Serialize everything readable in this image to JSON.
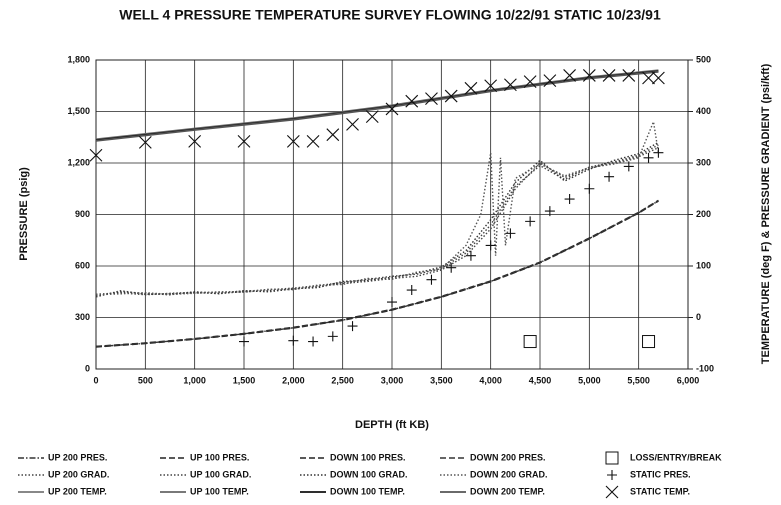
{
  "chart_data": {
    "type": "line",
    "title": "WELL 4 PRESSURE TEMPERATURE SURVEY FLOWING 10/22/91  STATIC 10/23/91",
    "x_label": "DEPTH (ft KB)",
    "y_label": "PRESSURE (psig)",
    "y2_label": "TEMPERATURE (deg F) & PRESSURE GRADIENT (psi/kft)",
    "xlim": [
      0,
      6000
    ],
    "xticks": [
      0,
      500,
      {
        "value": 1000,
        "label": "1,000"
      },
      {
        "value": 1500,
        "label": "1,500"
      },
      {
        "value": 2000,
        "label": "2,000"
      },
      {
        "value": 2500,
        "label": "2,500"
      },
      {
        "value": 3000,
        "label": "3,000"
      },
      {
        "value": 3500,
        "label": "3,500"
      },
      {
        "value": 4000,
        "label": "4,000"
      },
      {
        "value": 4500,
        "label": "4,500"
      },
      {
        "value": 5000,
        "label": "5,000"
      },
      {
        "value": 5500,
        "label": "5,500"
      },
      {
        "value": 6000,
        "label": "6,000"
      }
    ],
    "ylim": [
      0,
      1800
    ],
    "yticks": [
      0,
      300,
      600,
      900,
      {
        "value": 1200,
        "label": "1,200"
      },
      {
        "value": 1500,
        "label": "1,500"
      },
      {
        "value": 1800,
        "label": "1,800"
      }
    ],
    "y2lim": [
      -100,
      500
    ],
    "y2ticks": [
      -100,
      0,
      100,
      200,
      300,
      400,
      500
    ],
    "grid": true,
    "series": [
      {
        "name": "UP 200 PRES.",
        "color": "#333333",
        "style": "dashdot",
        "x": [
          0,
          500,
          1000,
          1500,
          2000,
          2500,
          3000,
          3500,
          4000,
          4500,
          5000,
          5500,
          5700
        ],
        "values": [
          130,
          150,
          175,
          205,
          240,
          285,
          345,
          420,
          510,
          620,
          760,
          910,
          980
        ]
      },
      {
        "name": "UP 200 GRAD.",
        "color": "#444444",
        "style": "dotted",
        "axis": "y2",
        "x": [
          0,
          250,
          500,
          750,
          1000,
          1250,
          1500,
          1750,
          2000,
          2250,
          2500,
          2750,
          3000,
          3250,
          3500,
          3750,
          4000,
          4250,
          4500,
          4750,
          5000,
          5250,
          5500,
          5700
        ],
        "values": [
          40,
          52,
          45,
          46,
          48,
          47,
          50,
          52,
          55,
          60,
          66,
          70,
          76,
          80,
          92,
          120,
          172,
          250,
          300,
          272,
          290,
          300,
          312,
          330
        ]
      },
      {
        "name": "UP 200 TEMP.",
        "color": "#777777",
        "style": "solid",
        "axis": "y2",
        "x": [
          0,
          1000,
          2000,
          3000,
          4000,
          5000,
          5700
        ],
        "values": [
          345,
          366,
          386,
          411,
          441,
          466,
          479
        ]
      },
      {
        "name": "UP 100 PRES.",
        "color": "#222222",
        "style": "dashed",
        "x": [
          0,
          500,
          1000,
          1500,
          2000,
          2500,
          3000,
          3500,
          4000,
          4500,
          5000,
          5500,
          5700
        ],
        "values": [
          132,
          152,
          177,
          207,
          243,
          288,
          348,
          423,
          513,
          623,
          763,
          913,
          983
        ]
      },
      {
        "name": "UP 100 GRAD.",
        "color": "#444444",
        "style": "dotted",
        "axis": "y2",
        "x": [
          0,
          250,
          500,
          750,
          1000,
          1250,
          1500,
          1750,
          2000,
          2250,
          2500,
          2750,
          3000,
          3250,
          3500,
          3750,
          4000,
          4250,
          4500,
          4750,
          5000,
          5250,
          5500,
          5700
        ],
        "values": [
          45,
          48,
          44,
          47,
          49,
          49,
          51,
          54,
          57,
          62,
          68,
          74,
          80,
          84,
          95,
          125,
          180,
          255,
          295,
          268,
          292,
          302,
          315,
          335
        ]
      },
      {
        "name": "UP 100 TEMP.",
        "color": "#666666",
        "style": "solid",
        "axis": "y2",
        "x": [
          0,
          1000,
          2000,
          3000,
          4000,
          5000,
          5700
        ],
        "values": [
          346,
          367,
          387,
          412,
          442,
          467,
          480
        ]
      },
      {
        "name": "DOWN 100 PRES.",
        "color": "#222222",
        "style": "dashed",
        "x": [
          0,
          500,
          1000,
          1500,
          2000,
          2500,
          3000,
          3500,
          4000,
          4500,
          5000,
          5500,
          5700
        ],
        "values": [
          128,
          148,
          173,
          203,
          238,
          283,
          343,
          418,
          508,
          618,
          758,
          908,
          978
        ]
      },
      {
        "name": "DOWN 100 GRAD.",
        "color": "#333333",
        "style": "dotted",
        "axis": "y2",
        "x": [
          0,
          250,
          500,
          750,
          1000,
          1250,
          1500,
          1750,
          2000,
          2250,
          2500,
          2750,
          3000,
          3250,
          3500,
          3750,
          4000,
          4250,
          4500,
          4750,
          5000,
          5250,
          5500,
          5700
        ],
        "values": [
          42,
          50,
          47,
          44,
          50,
          46,
          52,
          50,
          56,
          58,
          70,
          72,
          78,
          86,
          98,
          130,
          190,
          262,
          305,
          265,
          288,
          305,
          318,
          340
        ]
      },
      {
        "name": "DOWN 100 TEMP.",
        "color": "#111111",
        "style": "solid",
        "axis": "y2",
        "x": [
          0,
          1000,
          2000,
          3000,
          4000,
          5000,
          5700
        ],
        "values": [
          344,
          365,
          385,
          410,
          440,
          465,
          478
        ]
      },
      {
        "name": "DOWN 200 PRES.",
        "color": "#333333",
        "style": "dashed",
        "x": [
          0,
          500,
          1000,
          1500,
          2000,
          2500,
          3000,
          3500,
          4000,
          4500,
          5000,
          5500,
          5700
        ],
        "values": [
          131,
          151,
          176,
          206,
          241,
          286,
          346,
          421,
          511,
          621,
          761,
          911,
          981
        ]
      },
      {
        "name": "DOWN 200 GRAD.",
        "color": "#555555",
        "style": "dotted",
        "axis": "y2",
        "x": [
          0,
          250,
          500,
          750,
          1000,
          1250,
          1500,
          1750,
          2000,
          2250,
          2500,
          2750,
          3000,
          3250,
          3500,
          3750,
          3900,
          4000,
          4050,
          4100,
          4150,
          4250,
          4500,
          4750,
          5000,
          5250,
          5500,
          5650,
          5700
        ],
        "values": [
          44,
          46,
          48,
          45,
          47,
          50,
          49,
          55,
          54,
          63,
          64,
          76,
          74,
          88,
          94,
          140,
          200,
          320,
          120,
          310,
          140,
          270,
          298,
          275,
          291,
          298,
          310,
          380,
          320
        ]
      },
      {
        "name": "DOWN 200 TEMP.",
        "color": "#555555",
        "style": "solid",
        "axis": "y2",
        "x": [
          0,
          1000,
          2000,
          3000,
          4000,
          5000,
          5700
        ],
        "values": [
          343,
          364,
          384,
          409,
          439,
          464,
          477
        ]
      },
      {
        "name": "LOSS/ENTRY/BREAK",
        "color": "#111111",
        "marker": "square",
        "x": [
          4400,
          5600
        ],
        "values": [
          160,
          160
        ]
      },
      {
        "name": "STATIC PRES.",
        "color": "#111111",
        "marker": "plus",
        "x": [
          1500,
          2000,
          2200,
          2400,
          2600,
          3000,
          3200,
          3400,
          3600,
          3800,
          4000,
          4200,
          4400,
          4600,
          4800,
          5000,
          5200,
          5400,
          5600,
          5700
        ],
        "values": [
          160,
          165,
          160,
          190,
          250,
          390,
          460,
          520,
          590,
          660,
          720,
          790,
          860,
          920,
          990,
          1050,
          1120,
          1180,
          1230,
          1260
        ]
      },
      {
        "name": "STATIC TEMP.",
        "color": "#111111",
        "marker": "x",
        "axis": "y2",
        "x": [
          0,
          500,
          1000,
          1500,
          2000,
          2200,
          2400,
          2600,
          2800,
          3000,
          3200,
          3400,
          3600,
          3800,
          4000,
          4200,
          4400,
          4600,
          4800,
          5000,
          5200,
          5400,
          5600,
          5700
        ],
        "values": [
          315,
          340,
          342,
          342,
          342,
          342,
          355,
          375,
          390,
          405,
          420,
          425,
          430,
          445,
          450,
          452,
          458,
          460,
          470,
          470,
          470,
          470,
          465,
          465
        ]
      }
    ]
  }
}
